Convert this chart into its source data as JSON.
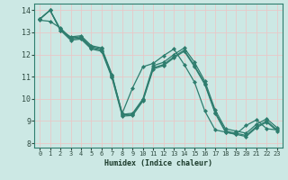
{
  "xlabel": "Humidex (Indice chaleur)",
  "bg_color": "#cce8e4",
  "grid_color": "#e8c8c8",
  "line_color": "#2e7d6e",
  "xlim": [
    -0.5,
    23.5
  ],
  "ylim": [
    7.8,
    14.3
  ],
  "yticks": [
    8,
    9,
    10,
    11,
    12,
    13,
    14
  ],
  "xticks": [
    0,
    1,
    2,
    3,
    4,
    5,
    6,
    7,
    8,
    9,
    10,
    11,
    12,
    13,
    14,
    15,
    16,
    17,
    18,
    19,
    20,
    21,
    22,
    23
  ],
  "series": [
    [
      13.6,
      14.0,
      13.1,
      12.8,
      12.85,
      12.4,
      12.3,
      11.1,
      9.3,
      9.35,
      10.0,
      11.5,
      11.65,
      12.0,
      12.3,
      11.65,
      10.8,
      9.5,
      8.65,
      8.55,
      8.45,
      8.85,
      9.1,
      8.7
    ],
    [
      13.55,
      13.5,
      13.2,
      12.75,
      12.8,
      12.35,
      12.25,
      11.05,
      9.35,
      10.5,
      11.45,
      11.6,
      11.95,
      12.25,
      11.55,
      10.75,
      9.45,
      8.6,
      8.5,
      8.4,
      8.8,
      9.05,
      8.65,
      8.6
    ],
    [
      13.6,
      14.0,
      13.15,
      12.7,
      12.75,
      12.3,
      12.2,
      11.0,
      9.28,
      9.3,
      9.95,
      11.4,
      11.55,
      11.9,
      12.2,
      11.5,
      10.7,
      9.4,
      8.55,
      8.45,
      8.35,
      8.75,
      9.0,
      8.6
    ],
    [
      13.6,
      14.0,
      13.1,
      12.65,
      12.7,
      12.25,
      12.15,
      10.95,
      9.22,
      9.25,
      9.9,
      11.35,
      11.5,
      11.85,
      12.15,
      11.45,
      10.65,
      9.35,
      8.5,
      8.4,
      8.3,
      8.7,
      8.95,
      8.55
    ]
  ]
}
